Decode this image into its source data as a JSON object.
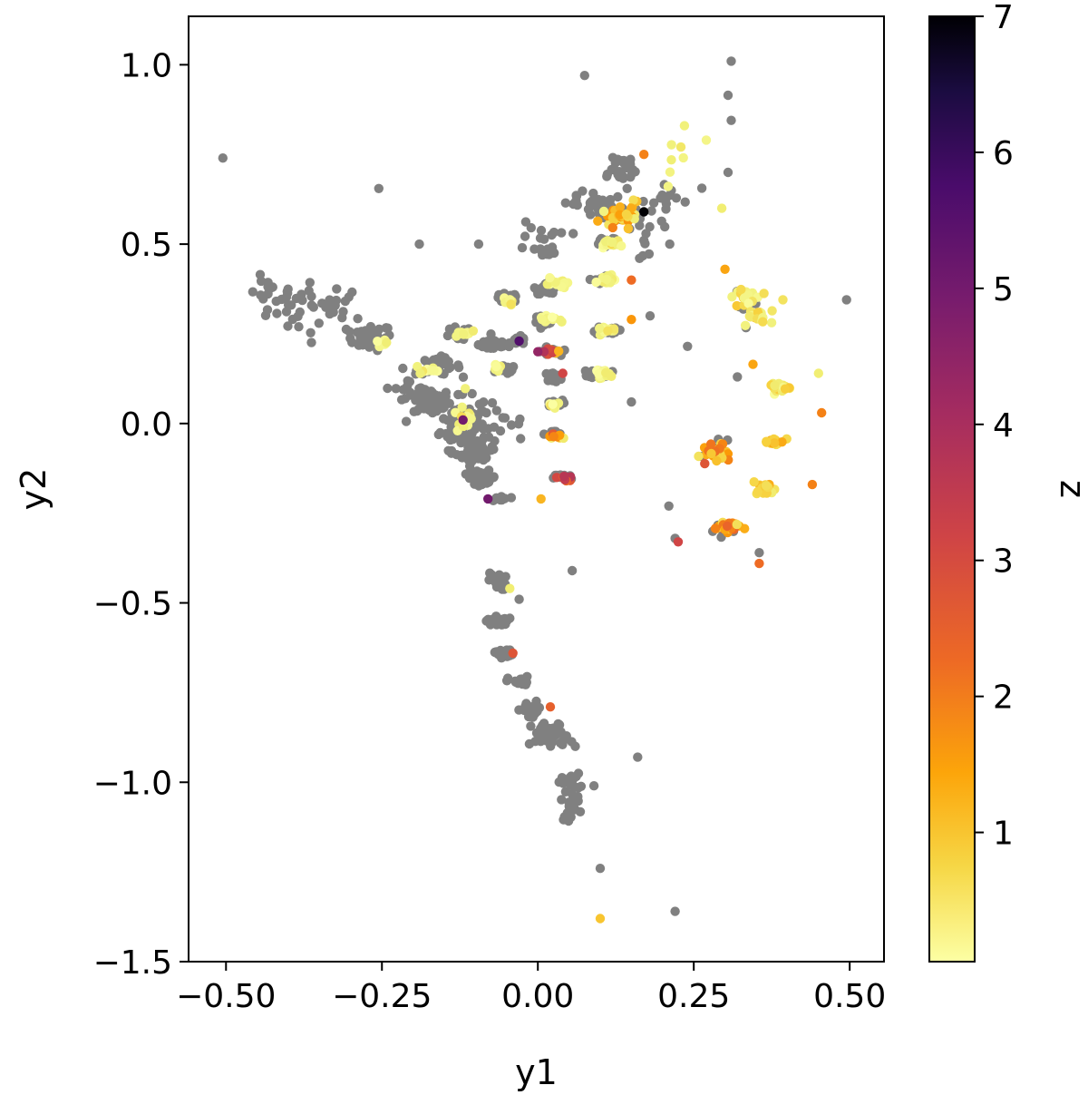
{
  "chart_data": {
    "type": "scatter",
    "title": "",
    "xlabel": "y1",
    "ylabel": "y2",
    "xlim": [
      -0.56,
      0.555
    ],
    "ylim": [
      -1.5,
      1.135
    ],
    "xticks": [
      -0.5,
      -0.25,
      0.0,
      0.25,
      0.5
    ],
    "xtick_labels": [
      "−0.50",
      "−0.25",
      "0.00",
      "0.25",
      "0.50"
    ],
    "yticks": [
      -1.5,
      -1.0,
      -0.5,
      0.0,
      0.5,
      1.0
    ],
    "ytick_labels": [
      "−1.5",
      "−1.0",
      "−0.5",
      "0.0",
      "0.5",
      "1.0"
    ],
    "grid": false,
    "gray_color": "#808080",
    "colorbar": {
      "label": "z",
      "colormap": "inferno",
      "range": [
        0.05,
        7
      ],
      "ticks": [
        1,
        2,
        3,
        4,
        5,
        6,
        7
      ],
      "tick_labels": [
        "1",
        "2",
        "3",
        "4",
        "5",
        "6",
        "7"
      ]
    },
    "series": [
      {
        "description": "no z value (gray)",
        "clusters": [
          [
            -0.35,
            0.32,
            0.07,
            0.06,
            40
          ],
          [
            -0.27,
            0.24,
            0.03,
            0.03,
            30
          ],
          [
            -0.43,
            0.37,
            0.04,
            0.03,
            16
          ],
          [
            -0.17,
            0.06,
            0.025,
            0.03,
            50
          ],
          [
            -0.12,
            0.0,
            0.03,
            0.06,
            90
          ],
          [
            -0.1,
            -0.08,
            0.025,
            0.03,
            40
          ],
          [
            -0.09,
            -0.15,
            0.02,
            0.015,
            40
          ],
          [
            -0.16,
            0.16,
            0.03,
            0.02,
            30
          ],
          [
            -0.07,
            0.22,
            0.02,
            0.015,
            35
          ],
          [
            -0.13,
            0.25,
            0.02,
            0.015,
            20
          ],
          [
            -0.05,
            0.35,
            0.015,
            0.01,
            25
          ],
          [
            -0.05,
            0.15,
            0.012,
            0.01,
            15
          ],
          [
            -0.03,
            0.23,
            0.012,
            0.01,
            15
          ],
          [
            -0.06,
            -0.21,
            0.012,
            0.008,
            12
          ],
          [
            0.015,
            0.48,
            0.012,
            0.01,
            20
          ],
          [
            0.015,
            0.38,
            0.015,
            0.015,
            25
          ],
          [
            0.01,
            0.29,
            0.015,
            0.01,
            25
          ],
          [
            0.02,
            0.2,
            0.012,
            0.01,
            20
          ],
          [
            0.025,
            0.13,
            0.012,
            0.01,
            15
          ],
          [
            0.025,
            0.055,
            0.012,
            0.008,
            15
          ],
          [
            0.025,
            -0.03,
            0.012,
            0.008,
            15
          ],
          [
            0.04,
            -0.15,
            0.012,
            0.008,
            15
          ],
          [
            0.11,
            0.6,
            0.025,
            0.03,
            40
          ],
          [
            0.11,
            0.51,
            0.015,
            0.01,
            20
          ],
          [
            0.11,
            0.4,
            0.015,
            0.01,
            20
          ],
          [
            0.11,
            0.26,
            0.015,
            0.01,
            20
          ],
          [
            0.1,
            0.14,
            0.015,
            0.01,
            20
          ],
          [
            0.13,
            0.71,
            0.03,
            0.04,
            25
          ],
          [
            0.06,
            0.62,
            0.03,
            0.02,
            12
          ],
          [
            0.0,
            0.52,
            0.04,
            0.04,
            10
          ],
          [
            -0.065,
            -0.44,
            0.012,
            0.02,
            20
          ],
          [
            -0.065,
            -0.55,
            0.015,
            0.012,
            20
          ],
          [
            -0.055,
            -0.64,
            0.012,
            0.01,
            15
          ],
          [
            -0.03,
            -0.72,
            0.015,
            0.012,
            20
          ],
          [
            -0.01,
            -0.8,
            0.015,
            0.02,
            20
          ],
          [
            0.02,
            -0.87,
            0.025,
            0.03,
            50
          ],
          [
            0.05,
            -1.0,
            0.015,
            0.02,
            20
          ],
          [
            0.055,
            -1.07,
            0.015,
            0.03,
            15
          ],
          [
            0.16,
            0.55,
            0.04,
            0.08,
            20
          ],
          [
            0.2,
            0.62,
            0.04,
            0.05,
            15
          ],
          [
            -0.2,
            0.1,
            0.04,
            0.05,
            20
          ],
          [
            -0.08,
            0.0,
            0.05,
            0.06,
            15
          ],
          [
            0.34,
            0.33,
            0.02,
            0.04,
            8
          ],
          [
            0.29,
            -0.08,
            0.02,
            0.04,
            8
          ],
          [
            0.31,
            -0.3,
            0.03,
            0.02,
            8
          ]
        ],
        "points": [
          [
            -0.505,
            0.74
          ],
          [
            -0.255,
            0.655
          ],
          [
            0.31,
            1.01
          ],
          [
            0.305,
            0.915
          ],
          [
            0.31,
            0.845
          ],
          [
            0.305,
            0.7
          ],
          [
            0.495,
            0.345
          ],
          [
            0.24,
            0.215
          ],
          [
            0.1,
            -1.24
          ],
          [
            0.22,
            -1.36
          ],
          [
            0.16,
            -0.93
          ],
          [
            0.21,
            -0.23
          ],
          [
            0.22,
            -0.32
          ],
          [
            0.355,
            -0.36
          ],
          [
            0.32,
            0.13
          ],
          [
            0.075,
            0.97
          ],
          [
            -0.19,
            0.5
          ],
          [
            -0.095,
            0.5
          ],
          [
            -0.025,
            0.49
          ],
          [
            0.06,
            -0.9
          ],
          [
            0.09,
            -1.01
          ],
          [
            -0.03,
            -0.49
          ],
          [
            0.055,
            -0.41
          ],
          [
            0.18,
            0.3
          ],
          [
            0.15,
            0.06
          ]
        ]
      },
      {
        "description": "colored by z",
        "clusters": [
          [
            0.13,
            0.58,
            0.02,
            0.015,
            30,
            1.6,
            0.5
          ],
          [
            0.12,
            0.5,
            0.012,
            0.01,
            15,
            0.6,
            0.3
          ],
          [
            0.12,
            0.4,
            0.015,
            0.01,
            15,
            0.6,
            0.3
          ],
          [
            0.11,
            0.26,
            0.015,
            0.01,
            15,
            0.5,
            0.3
          ],
          [
            0.1,
            0.14,
            0.015,
            0.01,
            15,
            0.5,
            0.3
          ],
          [
            0.03,
            0.39,
            0.015,
            0.01,
            15,
            0.5,
            0.2
          ],
          [
            0.015,
            0.29,
            0.015,
            0.01,
            15,
            0.5,
            0.2
          ],
          [
            0.025,
            0.2,
            0.012,
            0.008,
            8,
            2.5,
            1.0
          ],
          [
            0.025,
            0.055,
            0.01,
            0.008,
            8,
            0.7,
            0.5
          ],
          [
            0.025,
            -0.035,
            0.01,
            0.008,
            8,
            1.2,
            0.8
          ],
          [
            0.045,
            -0.15,
            0.01,
            0.006,
            10,
            3.5,
            0.8
          ],
          [
            -0.05,
            0.34,
            0.012,
            0.01,
            10,
            0.5,
            0.2
          ],
          [
            -0.12,
            0.25,
            0.015,
            0.008,
            10,
            0.5,
            0.2
          ],
          [
            -0.18,
            0.15,
            0.02,
            0.015,
            12,
            0.4,
            0.2
          ],
          [
            -0.12,
            0.02,
            0.02,
            0.05,
            15,
            0.5,
            0.3
          ],
          [
            -0.06,
            0.16,
            0.012,
            0.01,
            6,
            0.6,
            0.3
          ],
          [
            -0.25,
            0.22,
            0.015,
            0.01,
            6,
            0.4,
            0.2
          ],
          [
            0.33,
            0.35,
            0.015,
            0.015,
            15,
            1.0,
            0.4
          ],
          [
            0.35,
            0.3,
            0.012,
            0.012,
            15,
            1.0,
            0.4
          ],
          [
            0.39,
            0.1,
            0.015,
            0.01,
            20,
            1.0,
            0.3
          ],
          [
            0.38,
            -0.05,
            0.015,
            0.01,
            20,
            1.5,
            0.3
          ],
          [
            0.36,
            -0.18,
            0.015,
            0.01,
            20,
            1.3,
            0.3
          ],
          [
            0.28,
            -0.08,
            0.02,
            0.03,
            25,
            1.8,
            0.5
          ],
          [
            0.3,
            -0.29,
            0.02,
            0.012,
            25,
            2.4,
            0.5
          ],
          [
            0.36,
            0.3,
            0.04,
            0.05,
            8,
            1.0,
            0.3
          ],
          [
            0.22,
            0.72,
            0.02,
            0.06,
            6,
            0.6,
            0.2
          ],
          [
            0.15,
            0.6,
            0.02,
            0.05,
            8,
            1.5,
            0.5
          ]
        ],
        "points": [
          [
            0.17,
            0.59,
            7.0
          ],
          [
            0.1,
            -1.38,
            1.6
          ],
          [
            0.235,
            0.83,
            0.7
          ],
          [
            0.27,
            0.79,
            0.5
          ],
          [
            0.295,
            0.6,
            0.8
          ],
          [
            0.45,
            0.14,
            0.8
          ],
          [
            0.455,
            0.03,
            2.5
          ],
          [
            0.44,
            -0.17,
            2.5
          ],
          [
            0.355,
            -0.39,
            2.8
          ],
          [
            0.225,
            -0.33,
            3.5
          ],
          [
            0.3,
            0.43,
            2.0
          ],
          [
            0.345,
            0.165,
            2.0
          ],
          [
            0.17,
            0.75,
            2.5
          ],
          [
            0.15,
            0.4,
            2.8
          ],
          [
            0.15,
            0.29,
            2.2
          ],
          [
            -0.08,
            -0.21,
            5.0
          ],
          [
            -0.03,
            0.23,
            5.5
          ],
          [
            -0.12,
            0.01,
            5.0
          ],
          [
            0.01,
            0.2,
            4.0
          ],
          [
            0.04,
            0.14,
            3.5
          ],
          [
            0.005,
            -0.21,
            1.8
          ],
          [
            -0.04,
            -0.64,
            3.2
          ],
          [
            0.02,
            -0.79,
            3.0
          ],
          [
            -0.045,
            -0.46,
            0.8
          ],
          [
            0.0,
            0.2,
            4.5
          ]
        ]
      }
    ]
  }
}
